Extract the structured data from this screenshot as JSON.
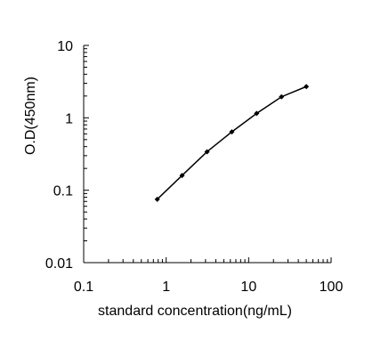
{
  "chart_data": {
    "type": "line",
    "title": "",
    "xlabel": "standard concentration(ng/mL)",
    "ylabel": "O.D(450nm)",
    "x_scale": "log",
    "y_scale": "log",
    "xlim": [
      0.1,
      100
    ],
    "ylim": [
      0.01,
      10
    ],
    "x_ticks": [
      "0.1",
      "1",
      "10",
      "100"
    ],
    "y_ticks": [
      "0.01",
      "0.1",
      "1",
      "10"
    ],
    "grid": false,
    "legend": "none",
    "series": [
      {
        "x": [
          0.78,
          1.56,
          3.13,
          6.25,
          12.5,
          25,
          50
        ],
        "y": [
          0.075,
          0.16,
          0.34,
          0.64,
          1.15,
          1.95,
          2.7
        ]
      }
    ],
    "colors": {
      "line": "#000000",
      "marker": "#000000",
      "axis": "#000000"
    }
  }
}
